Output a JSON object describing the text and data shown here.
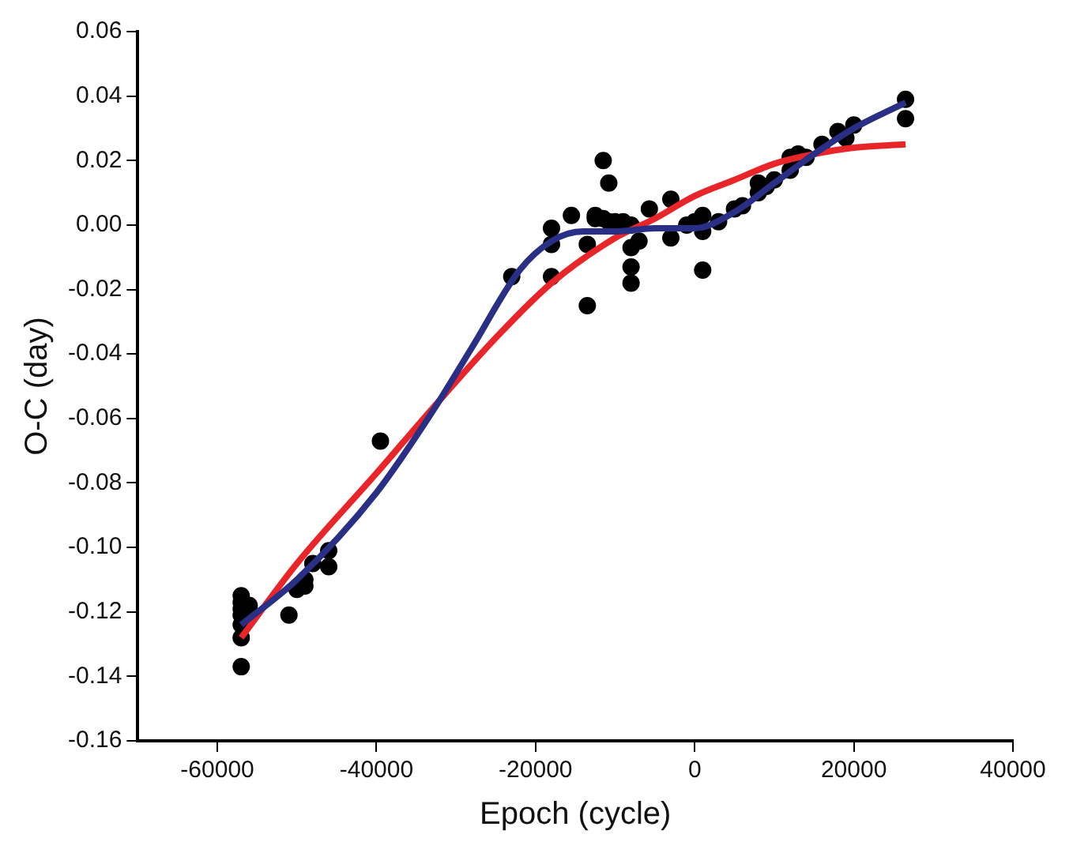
{
  "chart_data": {
    "type": "scatter",
    "xlabel": "Epoch (cycle)",
    "ylabel": "O-C (day)",
    "xlim": [
      -70000,
      40000
    ],
    "xticks": [
      -60000,
      -40000,
      -20000,
      0,
      20000,
      40000
    ],
    "ylim": [
      -0.16,
      0.06
    ],
    "yticks": [
      {
        "value": -0.16,
        "label": "-0.16"
      },
      {
        "value": -0.14,
        "label": "-0.14"
      },
      {
        "value": -0.12,
        "label": "-0.12"
      },
      {
        "value": -0.1,
        "label": "-0.10"
      },
      {
        "value": -0.08,
        "label": "-0.08"
      },
      {
        "value": -0.06,
        "label": "-0.06"
      },
      {
        "value": -0.04,
        "label": "-0.04"
      },
      {
        "value": -0.02,
        "label": "-0.02"
      },
      {
        "value": 0,
        "label": "0.00"
      },
      {
        "value": 0.02,
        "label": "0.02"
      },
      {
        "value": 0.04,
        "label": "0.04"
      },
      {
        "value": 0.06,
        "label": "0.06"
      }
    ],
    "grid": false,
    "legend": false,
    "series": [
      {
        "marker": "circle",
        "color": "#000000",
        "x": [
          -57000,
          -57000,
          -57000,
          -57000,
          -57000,
          -57000,
          -57000,
          -56000,
          -51000,
          -50000,
          -49000,
          -49000,
          -48000,
          -46000,
          -46000,
          -39500,
          -23000,
          -18000,
          -18000,
          -18000,
          -15500,
          -13500,
          -13500,
          -12500,
          -12500,
          -11500,
          -11500,
          -10800,
          -10800,
          -10000,
          -9000,
          -8000,
          -8000,
          -8000,
          -8000,
          -7000,
          -5700,
          -3000,
          -3000,
          -1000,
          0,
          1000,
          1000,
          1000,
          3000,
          5000,
          6000,
          8000,
          8000,
          9000,
          10000,
          12000,
          12000,
          13000,
          14000,
          16000,
          18000,
          19000,
          20000,
          26500,
          26500
        ],
        "values": [
          -0.115,
          -0.117,
          -0.119,
          -0.121,
          -0.124,
          -0.128,
          -0.137,
          -0.118,
          -0.121,
          -0.113,
          -0.11,
          -0.112,
          -0.105,
          -0.101,
          -0.106,
          -0.067,
          -0.016,
          -0.016,
          -0.006,
          -0.001,
          0.003,
          -0.025,
          -0.006,
          0.003,
          0.002,
          0.02,
          0.002,
          0.013,
          0.001,
          0.001,
          0.001,
          -0.007,
          -0.013,
          -0.018,
          0.0,
          -0.005,
          0.005,
          0.008,
          -0.004,
          0.0,
          0.001,
          0.003,
          -0.014,
          -0.002,
          0.001,
          0.005,
          0.006,
          0.01,
          0.013,
          0.012,
          0.014,
          0.017,
          0.021,
          0.022,
          0.021,
          0.025,
          0.029,
          0.027,
          0.031,
          0.039,
          0.033
        ]
      },
      {
        "type": "line",
        "marker": "none",
        "line_style": "solid",
        "color": "#2a2f86",
        "x": [
          -57000,
          -50000,
          -40000,
          -33000,
          -28000,
          -22000,
          -18000,
          -14000,
          -10000,
          -5000,
          0,
          5000,
          10000,
          15000,
          20000,
          26500
        ],
        "values": [
          -0.124,
          -0.11,
          -0.083,
          -0.058,
          -0.038,
          -0.014,
          -0.005,
          -0.002,
          -0.002,
          -0.001,
          -0.001,
          0.004,
          0.013,
          0.022,
          0.03,
          0.038
        ]
      },
      {
        "type": "line",
        "marker": "none",
        "line_style": "solid",
        "color": "#e8262a",
        "x": [
          -57000,
          -50000,
          -40000,
          -33000,
          -25000,
          -18000,
          -10000,
          -5000,
          0,
          5000,
          10000,
          15000,
          20000,
          26500
        ],
        "values": [
          -0.128,
          -0.105,
          -0.077,
          -0.057,
          -0.035,
          -0.018,
          -0.004,
          0.002,
          0.009,
          0.014,
          0.019,
          0.022,
          0.024,
          0.025
        ]
      }
    ]
  }
}
